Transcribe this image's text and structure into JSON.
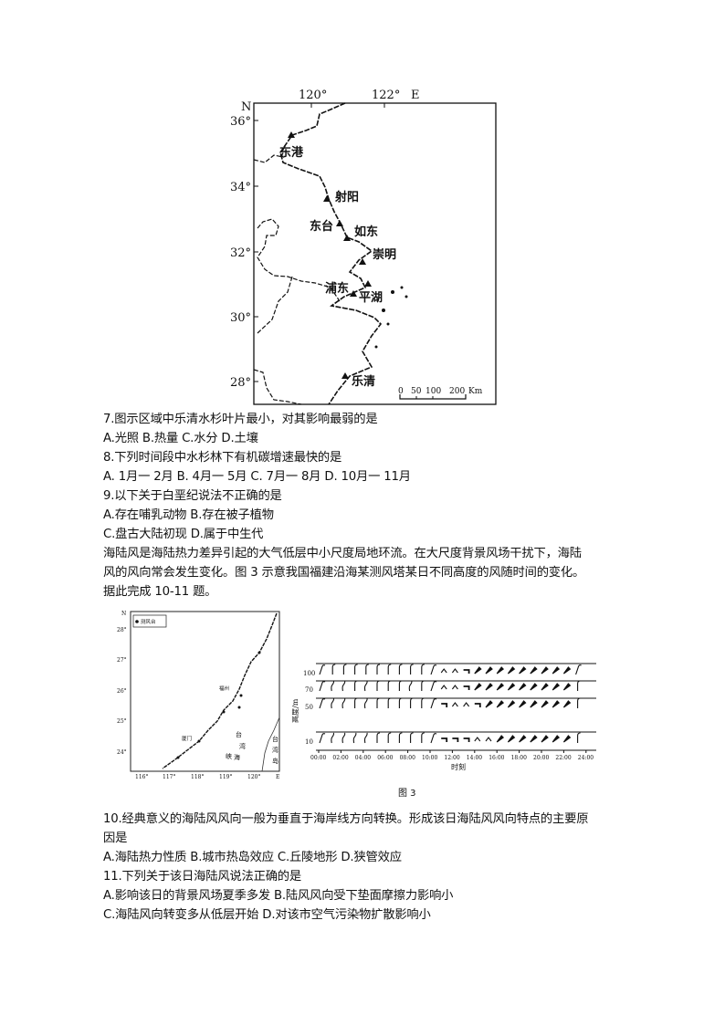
{
  "map1": {
    "lon_labels": [
      "120°",
      "122°",
      "E"
    ],
    "lat_labels": [
      "N",
      "36°",
      "34°",
      "32°",
      "30°",
      "28°"
    ],
    "stations": [
      "东港",
      "射阳",
      "东台",
      "如东",
      "崇明",
      "浦东",
      "平湖",
      "乐清"
    ],
    "scale_labels": [
      "0",
      "50",
      "100",
      "200",
      "Km"
    ]
  },
  "questions_a": [
    "7.图示区域中乐清水杉叶片最小，对其影响最弱的是",
    "A.光照 B.热量 C.水分 D.土壤",
    "8.下列时间段中水杉林下有机碳增速最快的是",
    "A. 1月一 2月 B. 4月一 5月 C. 7月一 8月 D. 10月一 11月",
    "9.以下关于白垩纪说法不正确的是",
    "A.存在哺乳动物 B.存在被子植物",
    "C.盘古大陆初现 D.属于中生代",
    "海陆风是海陆热力差异引起的大气低层中小尺度局地环流。在大尺度背景风场干扰下，海陆",
    "风的风向常会发生变化。图 3 示意我国福建沿海某测风塔某日不同高度的风随时间的变化。",
    "据此完成 10-11 题。"
  ],
  "map2": {
    "legend": "测风台",
    "lon_labels": [
      "116°",
      "117°",
      "118°",
      "119°",
      "120°",
      "E"
    ],
    "lat_labels": [
      "N",
      "28°",
      "27°",
      "26°",
      "25°",
      "24°"
    ],
    "places": [
      "福州",
      "厦门"
    ],
    "strait": [
      "台",
      "湾",
      "海",
      "峡"
    ],
    "island": [
      "台",
      "湾",
      "岛"
    ]
  },
  "wind_chart": {
    "ylabel": "高度/m",
    "xlabel": "时刻",
    "heights": [
      "100",
      "70",
      "50",
      "10"
    ],
    "x_ticks": [
      "00:00",
      "02:00",
      "04:00",
      "06:00",
      "08:00",
      "10:00",
      "12:00",
      "14:00",
      "16:00",
      "18:00",
      "20:00",
      "22:00",
      "24:00"
    ]
  },
  "figure_caption": "图 3",
  "questions_b": [
    "10.经典意义的海陆风风向一般为垂直于海岸线方向转换。形成该日海陆风风向特点的主要原",
    "因是",
    "A.海陆热力性质 B.城市热岛效应 C.丘陵地形 D.狭管效应",
    "11.下列关于该日海陆风说法正确的是",
    "A.影响该日的背景风场夏季多发 B.陆风风向受下垫面摩擦力影响小",
    "C.海陆风向转变多从低层开始 D.对该市空气污染物扩散影响小"
  ]
}
